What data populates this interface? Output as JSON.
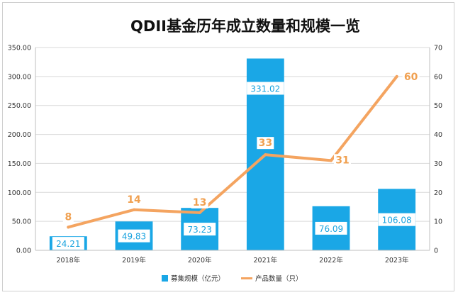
{
  "chart_data": {
    "type": "bar",
    "title": "QDII基金历年成立数量和规模一览",
    "categories": [
      "2018年",
      "2019年",
      "2020年",
      "2021年",
      "2022年",
      "2023年"
    ],
    "series": [
      {
        "name": "募集规模（亿元）",
        "type": "bar",
        "axis": "left",
        "values": [
          24.21,
          49.83,
          73.23,
          331.02,
          76.09,
          106.08
        ],
        "value_labels": [
          "24.21",
          "49.83",
          "73.23",
          "331.02",
          "76.09",
          "106.08"
        ],
        "color": "#1aa7e6"
      },
      {
        "name": "产品数量（只）",
        "type": "line",
        "axis": "right",
        "values": [
          8,
          14,
          13,
          33,
          31,
          60
        ],
        "value_labels": [
          "8",
          "14",
          "13",
          "33",
          "31",
          "60"
        ],
        "color": "#f4a460"
      }
    ],
    "y_left": {
      "range": [
        0,
        350
      ],
      "ticks": [
        "0.00",
        "50.00",
        "100.00",
        "150.00",
        "200.00",
        "250.00",
        "300.00",
        "350.00"
      ]
    },
    "y_right": {
      "range": [
        0,
        70
      ],
      "ticks": [
        "0",
        "10",
        "20",
        "30",
        "40",
        "50",
        "60",
        "70"
      ]
    },
    "grid": true,
    "legend": "bottom"
  }
}
